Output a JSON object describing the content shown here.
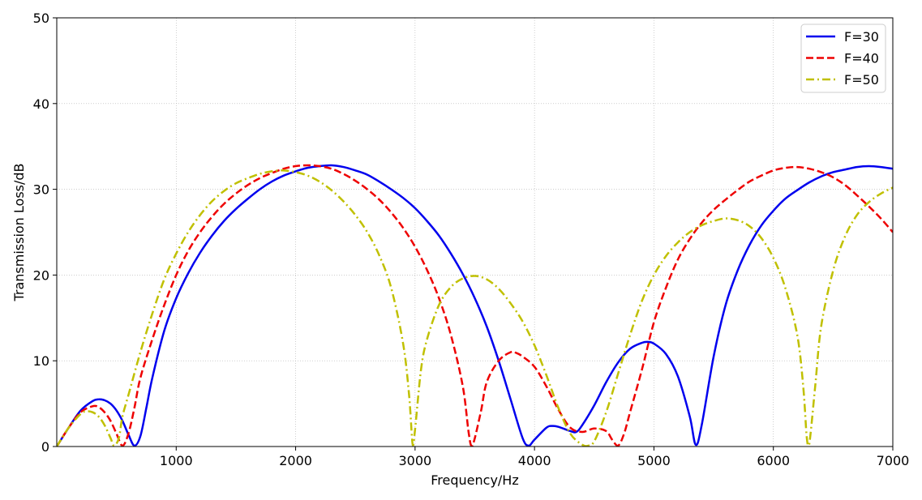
{
  "chart_data": {
    "type": "line",
    "title": "",
    "xlabel": "Frequency/Hz",
    "ylabel": "Transmission Loss/dB",
    "xlim": [
      0,
      7000
    ],
    "ylim": [
      0,
      50
    ],
    "xticks": [
      1000,
      2000,
      3000,
      4000,
      5000,
      6000,
      7000
    ],
    "yticks": [
      0,
      10,
      20,
      30,
      40,
      50
    ],
    "grid": true,
    "legend_position": "top-right",
    "series": [
      {
        "name": "F=30",
        "color": "#0000ee",
        "style": "solid",
        "points": [
          [
            0,
            0
          ],
          [
            100,
            2.2
          ],
          [
            200,
            4.2
          ],
          [
            300,
            5.3
          ],
          [
            350,
            5.5
          ],
          [
            400,
            5.4
          ],
          [
            450,
            5.0
          ],
          [
            500,
            4.2
          ],
          [
            550,
            3.0
          ],
          [
            600,
            1.4
          ],
          [
            650,
            0.1
          ],
          [
            700,
            1.2
          ],
          [
            750,
            4.5
          ],
          [
            800,
            8.0
          ],
          [
            900,
            13.5
          ],
          [
            1000,
            17.3
          ],
          [
            1100,
            20.2
          ],
          [
            1200,
            22.6
          ],
          [
            1300,
            24.6
          ],
          [
            1400,
            26.3
          ],
          [
            1500,
            27.7
          ],
          [
            1600,
            28.9
          ],
          [
            1700,
            30.0
          ],
          [
            1800,
            30.9
          ],
          [
            1900,
            31.6
          ],
          [
            2000,
            32.1
          ],
          [
            2100,
            32.5
          ],
          [
            2200,
            32.7
          ],
          [
            2300,
            32.8
          ],
          [
            2400,
            32.6
          ],
          [
            2500,
            32.2
          ],
          [
            2600,
            31.7
          ],
          [
            2700,
            30.9
          ],
          [
            2800,
            30.0
          ],
          [
            2900,
            29.0
          ],
          [
            3000,
            27.8
          ],
          [
            3100,
            26.3
          ],
          [
            3200,
            24.6
          ],
          [
            3300,
            22.5
          ],
          [
            3400,
            20.1
          ],
          [
            3500,
            17.3
          ],
          [
            3600,
            14.0
          ],
          [
            3700,
            10.0
          ],
          [
            3800,
            5.5
          ],
          [
            3900,
            1.0
          ],
          [
            3950,
            0.1
          ],
          [
            4000,
            0.8
          ],
          [
            4100,
            2.2
          ],
          [
            4150,
            2.4
          ],
          [
            4200,
            2.3
          ],
          [
            4300,
            1.8
          ],
          [
            4350,
            1.7
          ],
          [
            4400,
            2.5
          ],
          [
            4500,
            4.8
          ],
          [
            4600,
            7.5
          ],
          [
            4700,
            9.8
          ],
          [
            4800,
            11.4
          ],
          [
            4900,
            12.1
          ],
          [
            4950,
            12.2
          ],
          [
            5000,
            12.0
          ],
          [
            5100,
            10.8
          ],
          [
            5200,
            8.2
          ],
          [
            5300,
            3.5
          ],
          [
            5350,
            0.2
          ],
          [
            5400,
            2.5
          ],
          [
            5500,
            10.5
          ],
          [
            5600,
            16.5
          ],
          [
            5700,
            20.5
          ],
          [
            5800,
            23.5
          ],
          [
            5900,
            25.8
          ],
          [
            6000,
            27.5
          ],
          [
            6100,
            28.9
          ],
          [
            6200,
            29.9
          ],
          [
            6300,
            30.8
          ],
          [
            6400,
            31.5
          ],
          [
            6500,
            32.0
          ],
          [
            6600,
            32.3
          ],
          [
            6700,
            32.6
          ],
          [
            6800,
            32.7
          ],
          [
            6900,
            32.6
          ],
          [
            7000,
            32.4
          ]
        ]
      },
      {
        "name": "F=40",
        "color": "#ee0000",
        "style": "dashed",
        "points": [
          [
            0,
            0
          ],
          [
            100,
            2.2
          ],
          [
            200,
            4.0
          ],
          [
            300,
            4.7
          ],
          [
            350,
            4.6
          ],
          [
            400,
            4.0
          ],
          [
            450,
            3.0
          ],
          [
            500,
            1.5
          ],
          [
            550,
            0.1
          ],
          [
            600,
            1.5
          ],
          [
            650,
            4.5
          ],
          [
            700,
            8.0
          ],
          [
            800,
            12.5
          ],
          [
            900,
            16.5
          ],
          [
            1000,
            20.0
          ],
          [
            1100,
            22.8
          ],
          [
            1200,
            25.0
          ],
          [
            1300,
            26.8
          ],
          [
            1400,
            28.3
          ],
          [
            1500,
            29.5
          ],
          [
            1600,
            30.5
          ],
          [
            1700,
            31.3
          ],
          [
            1800,
            31.9
          ],
          [
            1900,
            32.4
          ],
          [
            2000,
            32.7
          ],
          [
            2100,
            32.8
          ],
          [
            2200,
            32.7
          ],
          [
            2300,
            32.4
          ],
          [
            2400,
            31.8
          ],
          [
            2500,
            31.0
          ],
          [
            2600,
            30.0
          ],
          [
            2700,
            28.8
          ],
          [
            2800,
            27.3
          ],
          [
            2900,
            25.5
          ],
          [
            3000,
            23.3
          ],
          [
            3100,
            20.6
          ],
          [
            3200,
            17.3
          ],
          [
            3300,
            13.0
          ],
          [
            3400,
            7.0
          ],
          [
            3450,
            1.5
          ],
          [
            3480,
            0.1
          ],
          [
            3550,
            4.0
          ],
          [
            3600,
            7.5
          ],
          [
            3700,
            10.0
          ],
          [
            3800,
            11.0
          ],
          [
            3850,
            10.9
          ],
          [
            3900,
            10.5
          ],
          [
            4000,
            9.3
          ],
          [
            4100,
            7.0
          ],
          [
            4200,
            4.3
          ],
          [
            4300,
            2.2
          ],
          [
            4400,
            1.7
          ],
          [
            4500,
            2.1
          ],
          [
            4600,
            1.8
          ],
          [
            4650,
            0.8
          ],
          [
            4700,
            0.1
          ],
          [
            4750,
            1.5
          ],
          [
            4800,
            4.0
          ],
          [
            4900,
            9.0
          ],
          [
            5000,
            14.5
          ],
          [
            5100,
            18.5
          ],
          [
            5200,
            21.8
          ],
          [
            5300,
            24.2
          ],
          [
            5400,
            26.1
          ],
          [
            5500,
            27.6
          ],
          [
            5600,
            28.8
          ],
          [
            5700,
            29.9
          ],
          [
            5800,
            30.9
          ],
          [
            5900,
            31.6
          ],
          [
            6000,
            32.2
          ],
          [
            6100,
            32.5
          ],
          [
            6200,
            32.6
          ],
          [
            6300,
            32.4
          ],
          [
            6400,
            32.0
          ],
          [
            6500,
            31.4
          ],
          [
            6600,
            30.5
          ],
          [
            6700,
            29.3
          ],
          [
            6800,
            28.0
          ],
          [
            6900,
            26.6
          ],
          [
            7000,
            25.0
          ]
        ]
      },
      {
        "name": "F=50",
        "color": "#c0c000",
        "style": "dashdot",
        "points": [
          [
            0,
            0
          ],
          [
            100,
            2.2
          ],
          [
            200,
            3.8
          ],
          [
            250,
            4.1
          ],
          [
            300,
            4.0
          ],
          [
            350,
            3.5
          ],
          [
            400,
            2.5
          ],
          [
            450,
            1.0
          ],
          [
            480,
            0.1
          ],
          [
            520,
            1.0
          ],
          [
            550,
            3.5
          ],
          [
            600,
            6.0
          ],
          [
            700,
            11.0
          ],
          [
            800,
            15.5
          ],
          [
            900,
            19.5
          ],
          [
            1000,
            22.5
          ],
          [
            1100,
            25.0
          ],
          [
            1200,
            27.0
          ],
          [
            1300,
            28.6
          ],
          [
            1400,
            29.8
          ],
          [
            1500,
            30.7
          ],
          [
            1600,
            31.3
          ],
          [
            1700,
            31.8
          ],
          [
            1800,
            32.1
          ],
          [
            1900,
            32.2
          ],
          [
            2000,
            32.0
          ],
          [
            2100,
            31.6
          ],
          [
            2200,
            30.9
          ],
          [
            2300,
            29.9
          ],
          [
            2400,
            28.6
          ],
          [
            2500,
            27.0
          ],
          [
            2600,
            25.0
          ],
          [
            2700,
            22.3
          ],
          [
            2800,
            18.5
          ],
          [
            2900,
            12.0
          ],
          [
            2950,
            6.0
          ],
          [
            2980,
            0.2
          ],
          [
            3000,
            2.0
          ],
          [
            3050,
            9.0
          ],
          [
            3100,
            12.5
          ],
          [
            3200,
            16.5
          ],
          [
            3300,
            18.6
          ],
          [
            3400,
            19.6
          ],
          [
            3500,
            19.9
          ],
          [
            3600,
            19.5
          ],
          [
            3700,
            18.4
          ],
          [
            3800,
            16.7
          ],
          [
            3900,
            14.6
          ],
          [
            4000,
            11.8
          ],
          [
            4100,
            8.3
          ],
          [
            4200,
            4.5
          ],
          [
            4300,
            1.5
          ],
          [
            4400,
            0.2
          ],
          [
            4450,
            0.1
          ],
          [
            4500,
            0.6
          ],
          [
            4600,
            4.0
          ],
          [
            4700,
            8.5
          ],
          [
            4800,
            13.0
          ],
          [
            4900,
            17.0
          ],
          [
            5000,
            20.0
          ],
          [
            5100,
            22.2
          ],
          [
            5200,
            23.8
          ],
          [
            5300,
            25.0
          ],
          [
            5400,
            25.8
          ],
          [
            5500,
            26.3
          ],
          [
            5600,
            26.6
          ],
          [
            5700,
            26.4
          ],
          [
            5800,
            25.7
          ],
          [
            5900,
            24.3
          ],
          [
            6000,
            22.0
          ],
          [
            6100,
            18.5
          ],
          [
            6200,
            13.0
          ],
          [
            6250,
            7.0
          ],
          [
            6280,
            1.0
          ],
          [
            6300,
            0.2
          ],
          [
            6350,
            7.0
          ],
          [
            6400,
            14.0
          ],
          [
            6500,
            20.5
          ],
          [
            6600,
            24.5
          ],
          [
            6700,
            27.0
          ],
          [
            6800,
            28.5
          ],
          [
            6900,
            29.5
          ],
          [
            7000,
            30.2
          ]
        ]
      }
    ]
  }
}
